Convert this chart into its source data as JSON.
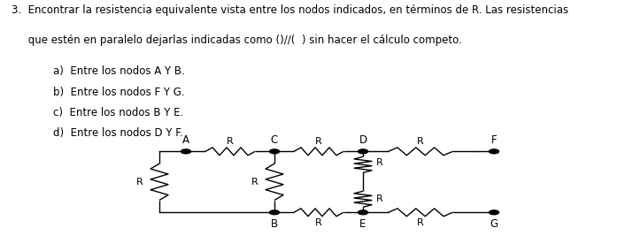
{
  "line1": "3.  Encontrar la resistencia equivalente vista entre los nodos indicados, en términos de R. Las resistencias",
  "line2": "     que estén en paralelo dejarlas indicadas como ()//(  ) sin hacer el cálculo competo.",
  "items": [
    "a)  Entre los nodos A Y B.",
    "b)  Entre los nodos F Y G.",
    "c)  Entre los nodos B Y E.",
    "d)  Entre los nodos D Y F."
  ],
  "background": "#ffffff",
  "line_color": "#000000",
  "font_size_main": 8.5,
  "font_size_node": 8.5,
  "resistor_label_size": 8.0
}
